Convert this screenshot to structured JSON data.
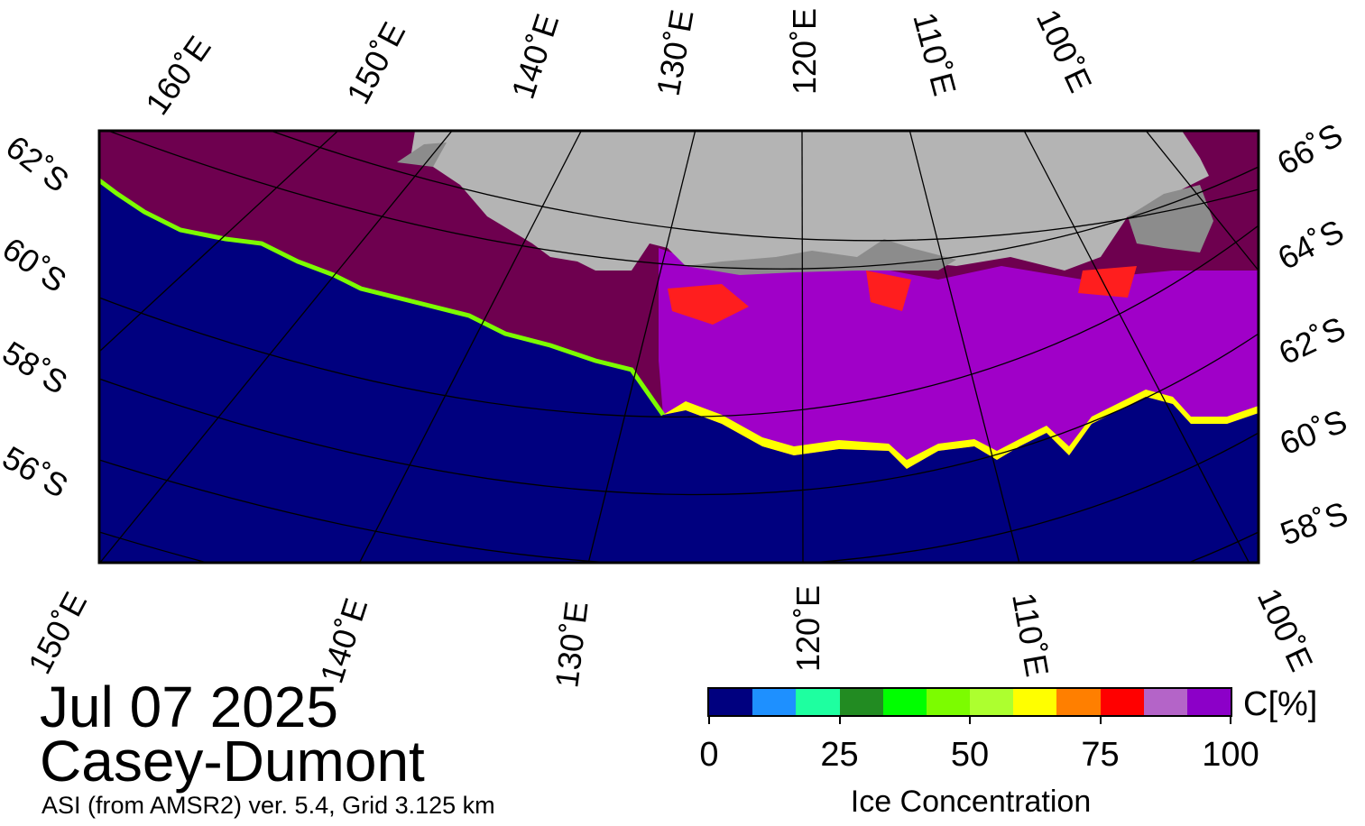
{
  "map": {
    "top_lon_labels": [
      "160˚E",
      "150˚E",
      "140˚E",
      "130˚E",
      "120˚E",
      "110˚E",
      "100˚E"
    ],
    "bottom_lon_labels": [
      "150˚E",
      "140˚E",
      "130˚E",
      "120˚E",
      "110˚E",
      "100˚E"
    ],
    "left_lat_labels": [
      "62˚S",
      "60˚S",
      "58˚S",
      "56˚S"
    ],
    "right_lat_labels": [
      "66˚S",
      "64˚S",
      "62˚S",
      "60˚S",
      "58˚S"
    ],
    "colors": {
      "open_water": "#00007f",
      "land": "#b4b4b4",
      "ice_shelf": "#8c8c8c",
      "full_ice": "#6e004f",
      "ice_high": "#a000c8",
      "ice_mid": "#ff1e1e",
      "ice_edge": "#ffff00",
      "ice_low": "#7cfc00"
    }
  },
  "labels": {
    "date": "Jul 07 2025",
    "region": "Casey-Dumont",
    "source": "ASI (from AMSR2) ver. 5.4,  Grid 3.125 km"
  },
  "colorbar": {
    "title": "Ice Concentration",
    "unit": "C[%]",
    "tick_labels": [
      "0",
      "25",
      "50",
      "75",
      "100"
    ],
    "tick_values": [
      0,
      25,
      50,
      75,
      100
    ],
    "colors": [
      "#00007f",
      "#1e90ff",
      "#1effa0",
      "#228b22",
      "#00ff00",
      "#7cfc00",
      "#adff2f",
      "#ffff00",
      "#ff7f00",
      "#ff0000",
      "#b464c8",
      "#8c00c8"
    ]
  }
}
